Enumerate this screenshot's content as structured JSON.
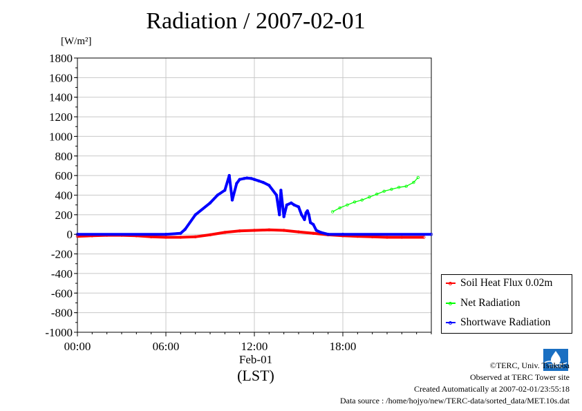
{
  "title": "Radiation / 2007-02-01",
  "unit": "[W/m²]",
  "x_date": "Feb-01",
  "x_tz": "(LST)",
  "footer": {
    "copyright": "©TERC, Univ. Tsukuba",
    "site": "Observed at TERC Tower site",
    "created": "Created Automatically at 2007-02-01/23:55:18",
    "source": "Data source : /home/hojyo/new/TERC-data/sorted_data/MET.10s.dat"
  },
  "logo_text": "TERC",
  "chart_data": {
    "type": "line",
    "title": "Radiation / 2007-02-01",
    "ylabel": "[W/m²]",
    "xlabel": "(LST)",
    "x_unit": "hour",
    "xlim": [
      0,
      24
    ],
    "ylim": [
      -1000,
      1800
    ],
    "x_ticks": [
      "00:00",
      "06:00",
      "12:00",
      "18:00"
    ],
    "y_ticks": [
      "1800",
      "1600",
      "1400",
      "1200",
      "1000",
      "800",
      "600",
      "400",
      "200",
      "0",
      "-200",
      "-400",
      "-600",
      "-800",
      "-1000"
    ],
    "grid": true,
    "legend_position": "bottom-right-outside",
    "series": [
      {
        "name": "Soil Heat Flux 0.02m",
        "color": "#ff0000",
        "x": [
          0,
          1,
          2,
          3,
          4,
          5,
          6,
          7,
          8,
          9,
          10,
          11,
          12,
          13,
          14,
          15,
          16,
          17,
          18,
          19,
          20,
          21,
          22,
          23.5
        ],
        "values": [
          -20,
          -15,
          -10,
          -10,
          -15,
          -25,
          -30,
          -30,
          -25,
          -5,
          20,
          35,
          40,
          45,
          40,
          25,
          10,
          -5,
          -15,
          -20,
          -25,
          -30,
          -30,
          -30
        ]
      },
      {
        "name": "Net Radiation",
        "color": "#00ff00",
        "x": [
          17.3,
          17.8,
          18.3,
          18.8,
          19.3,
          19.8,
          20.3,
          20.8,
          21.3,
          21.8,
          22.3,
          22.8,
          23.1
        ],
        "values": [
          230,
          270,
          300,
          330,
          350,
          380,
          410,
          440,
          460,
          480,
          490,
          530,
          580
        ]
      },
      {
        "name": "Shortwave Radiation",
        "color": "#0000ff",
        "x": [
          0,
          6,
          7,
          7.3,
          8,
          9,
          9.5,
          10,
          10.3,
          10.5,
          10.8,
          11,
          11.3,
          11.5,
          11.8,
          12,
          12.3,
          12.6,
          13,
          13.5,
          13.7,
          13.8,
          14,
          14.2,
          14.5,
          14.7,
          15,
          15.2,
          15.4,
          15.5,
          15.6,
          15.7,
          15.8,
          16,
          16.2,
          16.5,
          17,
          18,
          24
        ],
        "values": [
          0,
          0,
          10,
          50,
          200,
          320,
          400,
          450,
          600,
          350,
          520,
          560,
          570,
          575,
          570,
          560,
          545,
          530,
          500,
          400,
          200,
          450,
          180,
          300,
          320,
          300,
          280,
          200,
          150,
          220,
          240,
          200,
          120,
          100,
          40,
          20,
          0,
          0,
          0
        ]
      }
    ]
  }
}
